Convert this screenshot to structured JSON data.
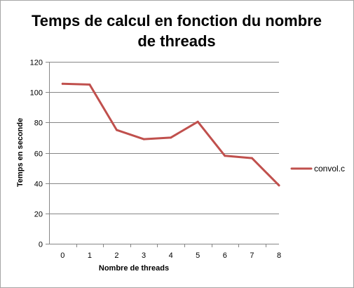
{
  "chart_data": {
    "type": "line",
    "title_lines": [
      "Temps de calcul en fonction du nombre",
      "de threads"
    ],
    "xlabel": "Nombre de threads",
    "ylabel": "Temps en seconde",
    "categories": [
      "0",
      "1",
      "2",
      "3",
      "4",
      "5",
      "6",
      "7",
      "8"
    ],
    "ylim": [
      0,
      120
    ],
    "yticks": [
      "0",
      "20",
      "40",
      "60",
      "80",
      "100",
      "120"
    ],
    "grid": true,
    "legend_position": "right",
    "series": [
      {
        "name": "convol.c",
        "color": "#c0504d",
        "values": [
          105.5,
          105,
          75,
          69,
          70,
          80.5,
          58,
          56.5,
          38.5
        ]
      }
    ]
  }
}
